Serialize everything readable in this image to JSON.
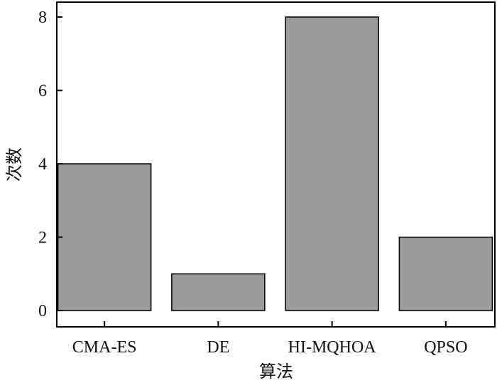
{
  "chart_data": {
    "type": "bar",
    "categories": [
      "CMA-ES",
      "DE",
      "HI-MQHOA",
      "QPSO"
    ],
    "values": [
      4,
      1,
      8,
      2
    ],
    "xlabel": "算法",
    "ylabel": "次数",
    "ylim": [
      0,
      8
    ],
    "yticks": [
      0,
      2,
      4,
      6,
      8
    ],
    "grid": false,
    "bar_color": "#9b9b9b",
    "edge_color": "#000000"
  }
}
